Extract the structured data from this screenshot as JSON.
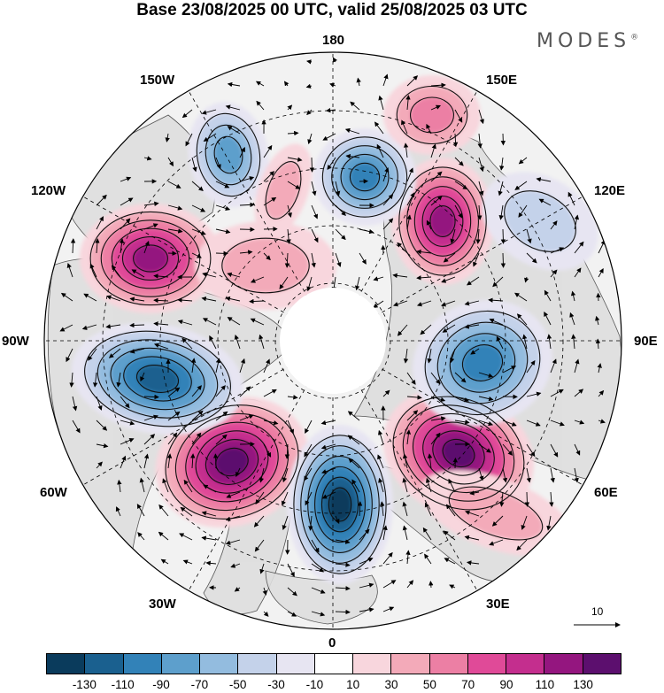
{
  "title": "Base 23/08/2025 00 UTC, valid 25/08/2025 03 UTC",
  "brand": {
    "name": "MODES",
    "mark": "®"
  },
  "longitude_labels": {
    "lon_180": "180",
    "lon_150e": "150E",
    "lon_120e": "120E",
    "lon_90e": "90E",
    "lon_60e": "60E",
    "lon_30e": "30E",
    "lon_0": "0",
    "lon_30w": "30W",
    "lon_60w": "60W",
    "lon_90w": "90W",
    "lon_120w": "120W",
    "lon_150w": "150W"
  },
  "reference_vector": {
    "label": "10"
  },
  "colorbar": {
    "colors": [
      "#0a3b5c",
      "#1a608f",
      "#3282b8",
      "#5d9fcc",
      "#93bcdf",
      "#c4d2ea",
      "#e7e5f2",
      "#ffffff",
      "#f8d6dd",
      "#f3aab9",
      "#ec7fa4",
      "#e04a98",
      "#c42e8e",
      "#94167f",
      "#5c0f6e"
    ],
    "tick_labels": [
      "-130",
      "-110",
      "-90",
      "-70",
      "-50",
      "-30",
      "-10",
      "10",
      "30",
      "50",
      "70",
      "90",
      "110",
      "130"
    ]
  },
  "map_colors": {
    "land": "#dedede",
    "ocean": "#f2f2f2",
    "coast": "#444444",
    "arrow": "#000000"
  }
}
